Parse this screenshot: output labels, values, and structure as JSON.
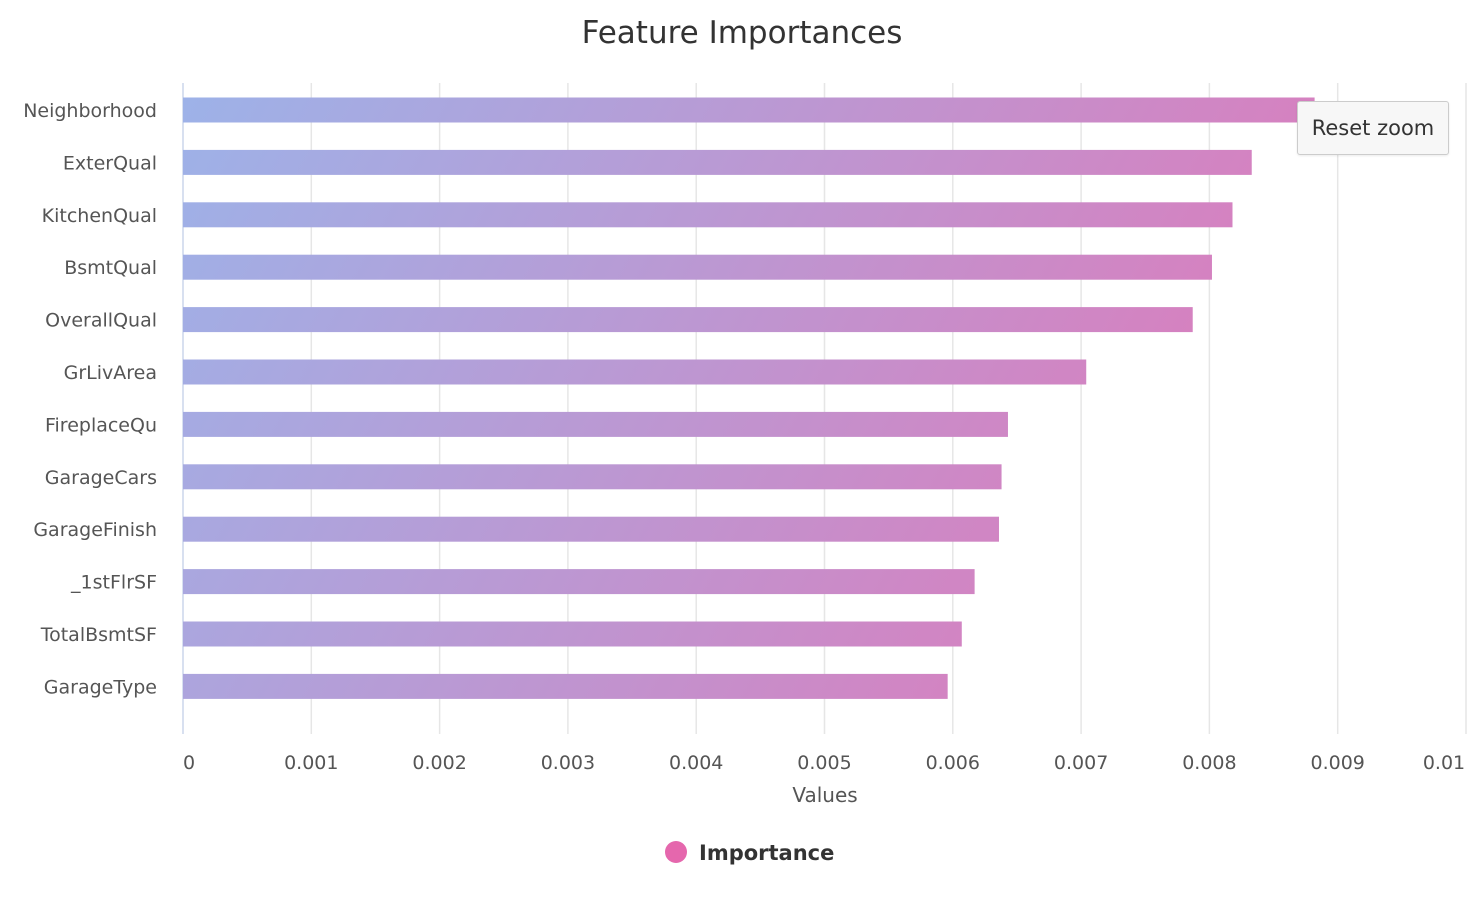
{
  "chart_data": {
    "type": "bar",
    "orientation": "horizontal",
    "title": "Feature Importances",
    "xlabel": "Values",
    "ylabel": "",
    "xlim": [
      0,
      0.01
    ],
    "x_ticks": [
      "0",
      "0.001",
      "0.002",
      "0.003",
      "0.004",
      "0.005",
      "0.006",
      "0.007",
      "0.008",
      "0.009",
      "0.01"
    ],
    "categories": [
      "Neighborhood",
      "ExterQual",
      "KitchenQual",
      "BsmtQual",
      "OverallQual",
      "GrLivArea",
      "FireplaceQu",
      "GarageCars",
      "GarageFinish",
      "_1stFlrSF",
      "TotalBsmtSF",
      "GarageType"
    ],
    "series": [
      {
        "name": "Importance",
        "values": [
          0.00882,
          0.00833,
          0.00818,
          0.00802,
          0.00787,
          0.00704,
          0.00643,
          0.00638,
          0.00636,
          0.00617,
          0.00607,
          0.00596
        ]
      }
    ],
    "grid": true,
    "legend_position": "bottom-center",
    "colors": {
      "gradient_start": "#9db2e8",
      "gradient_end": "#e574b5",
      "legend_marker": "#e567ad",
      "gridline": "#e6e6e6",
      "axis_text": "#555555",
      "title_text": "#333333"
    }
  },
  "controls": {
    "reset_zoom_label": "Reset zoom"
  }
}
